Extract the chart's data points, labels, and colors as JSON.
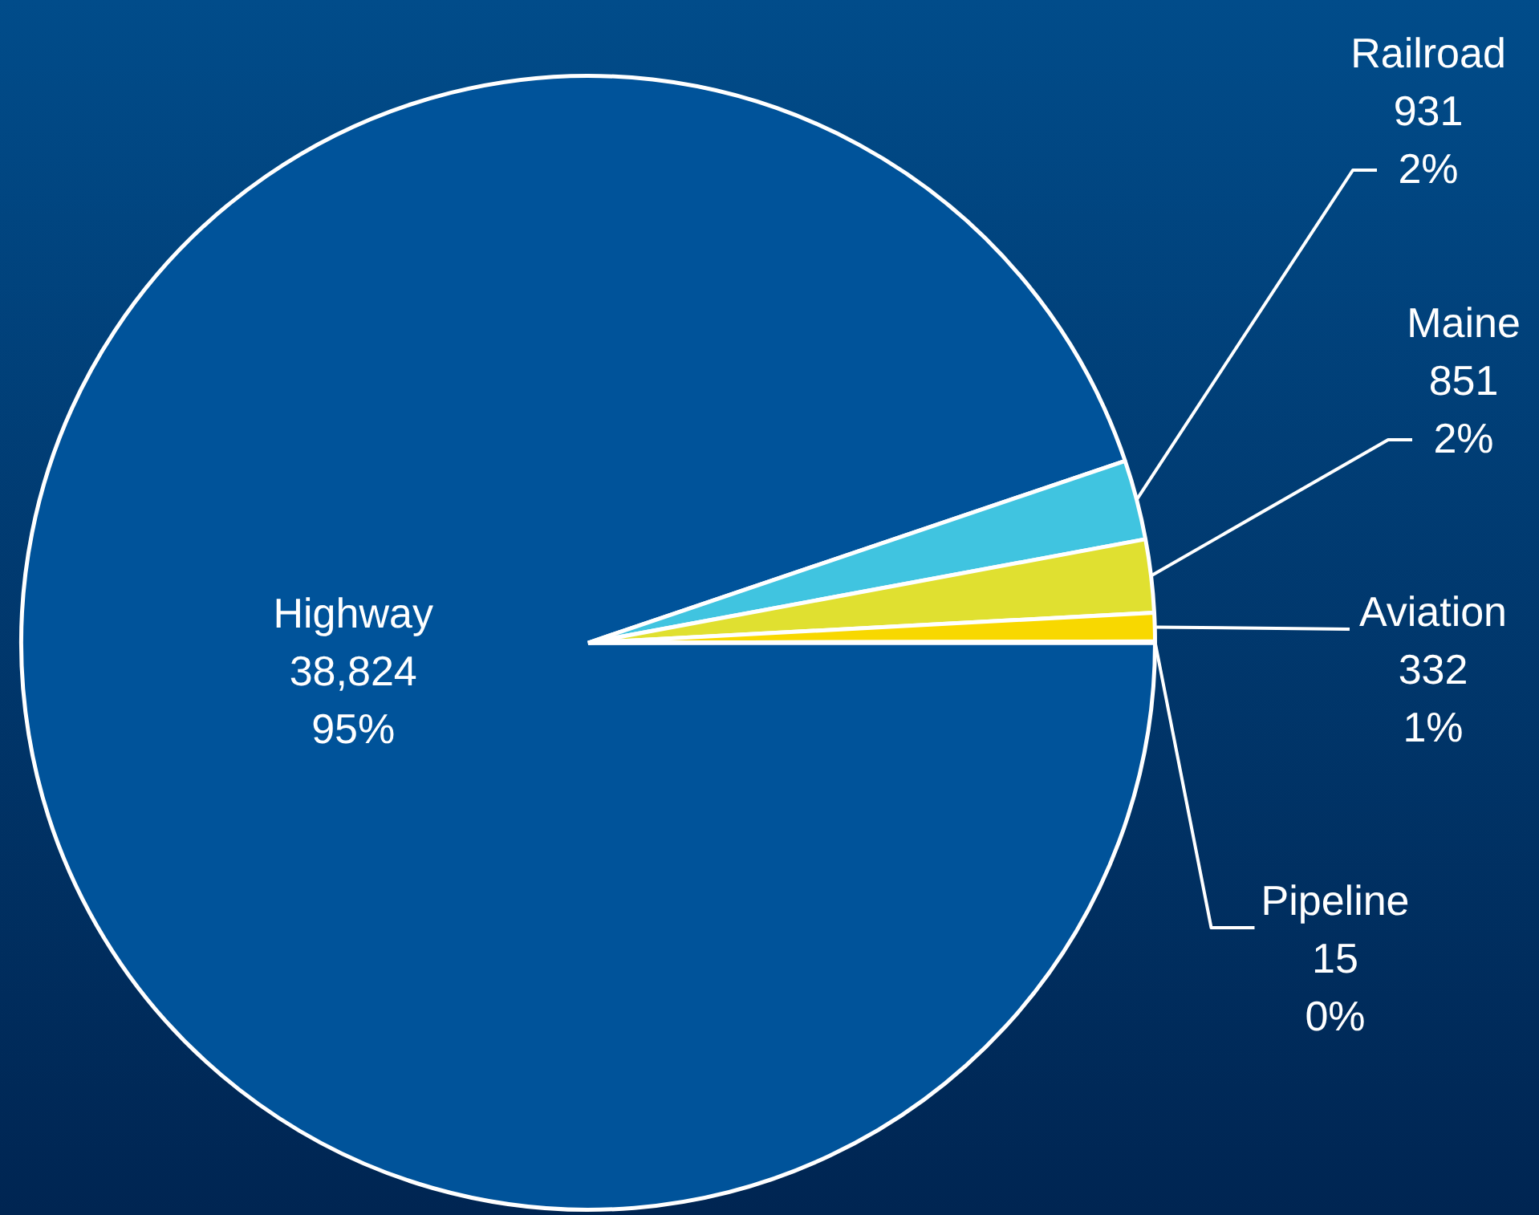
{
  "chart_data": {
    "type": "pie",
    "categories": [
      "Highway",
      "Railroad",
      "Maine",
      "Aviation",
      "Pipeline"
    ],
    "values": [
      38824,
      931,
      851,
      332,
      15
    ],
    "colors": [
      "#00539a",
      "#40c4e0",
      "#e0e030",
      "#f8d800",
      "#f0a000"
    ],
    "value_labels": [
      "38,824\n95%",
      "931\n2%",
      "851\n2%",
      "332\n1%",
      "15\n0%"
    ],
    "legend": false
  }
}
